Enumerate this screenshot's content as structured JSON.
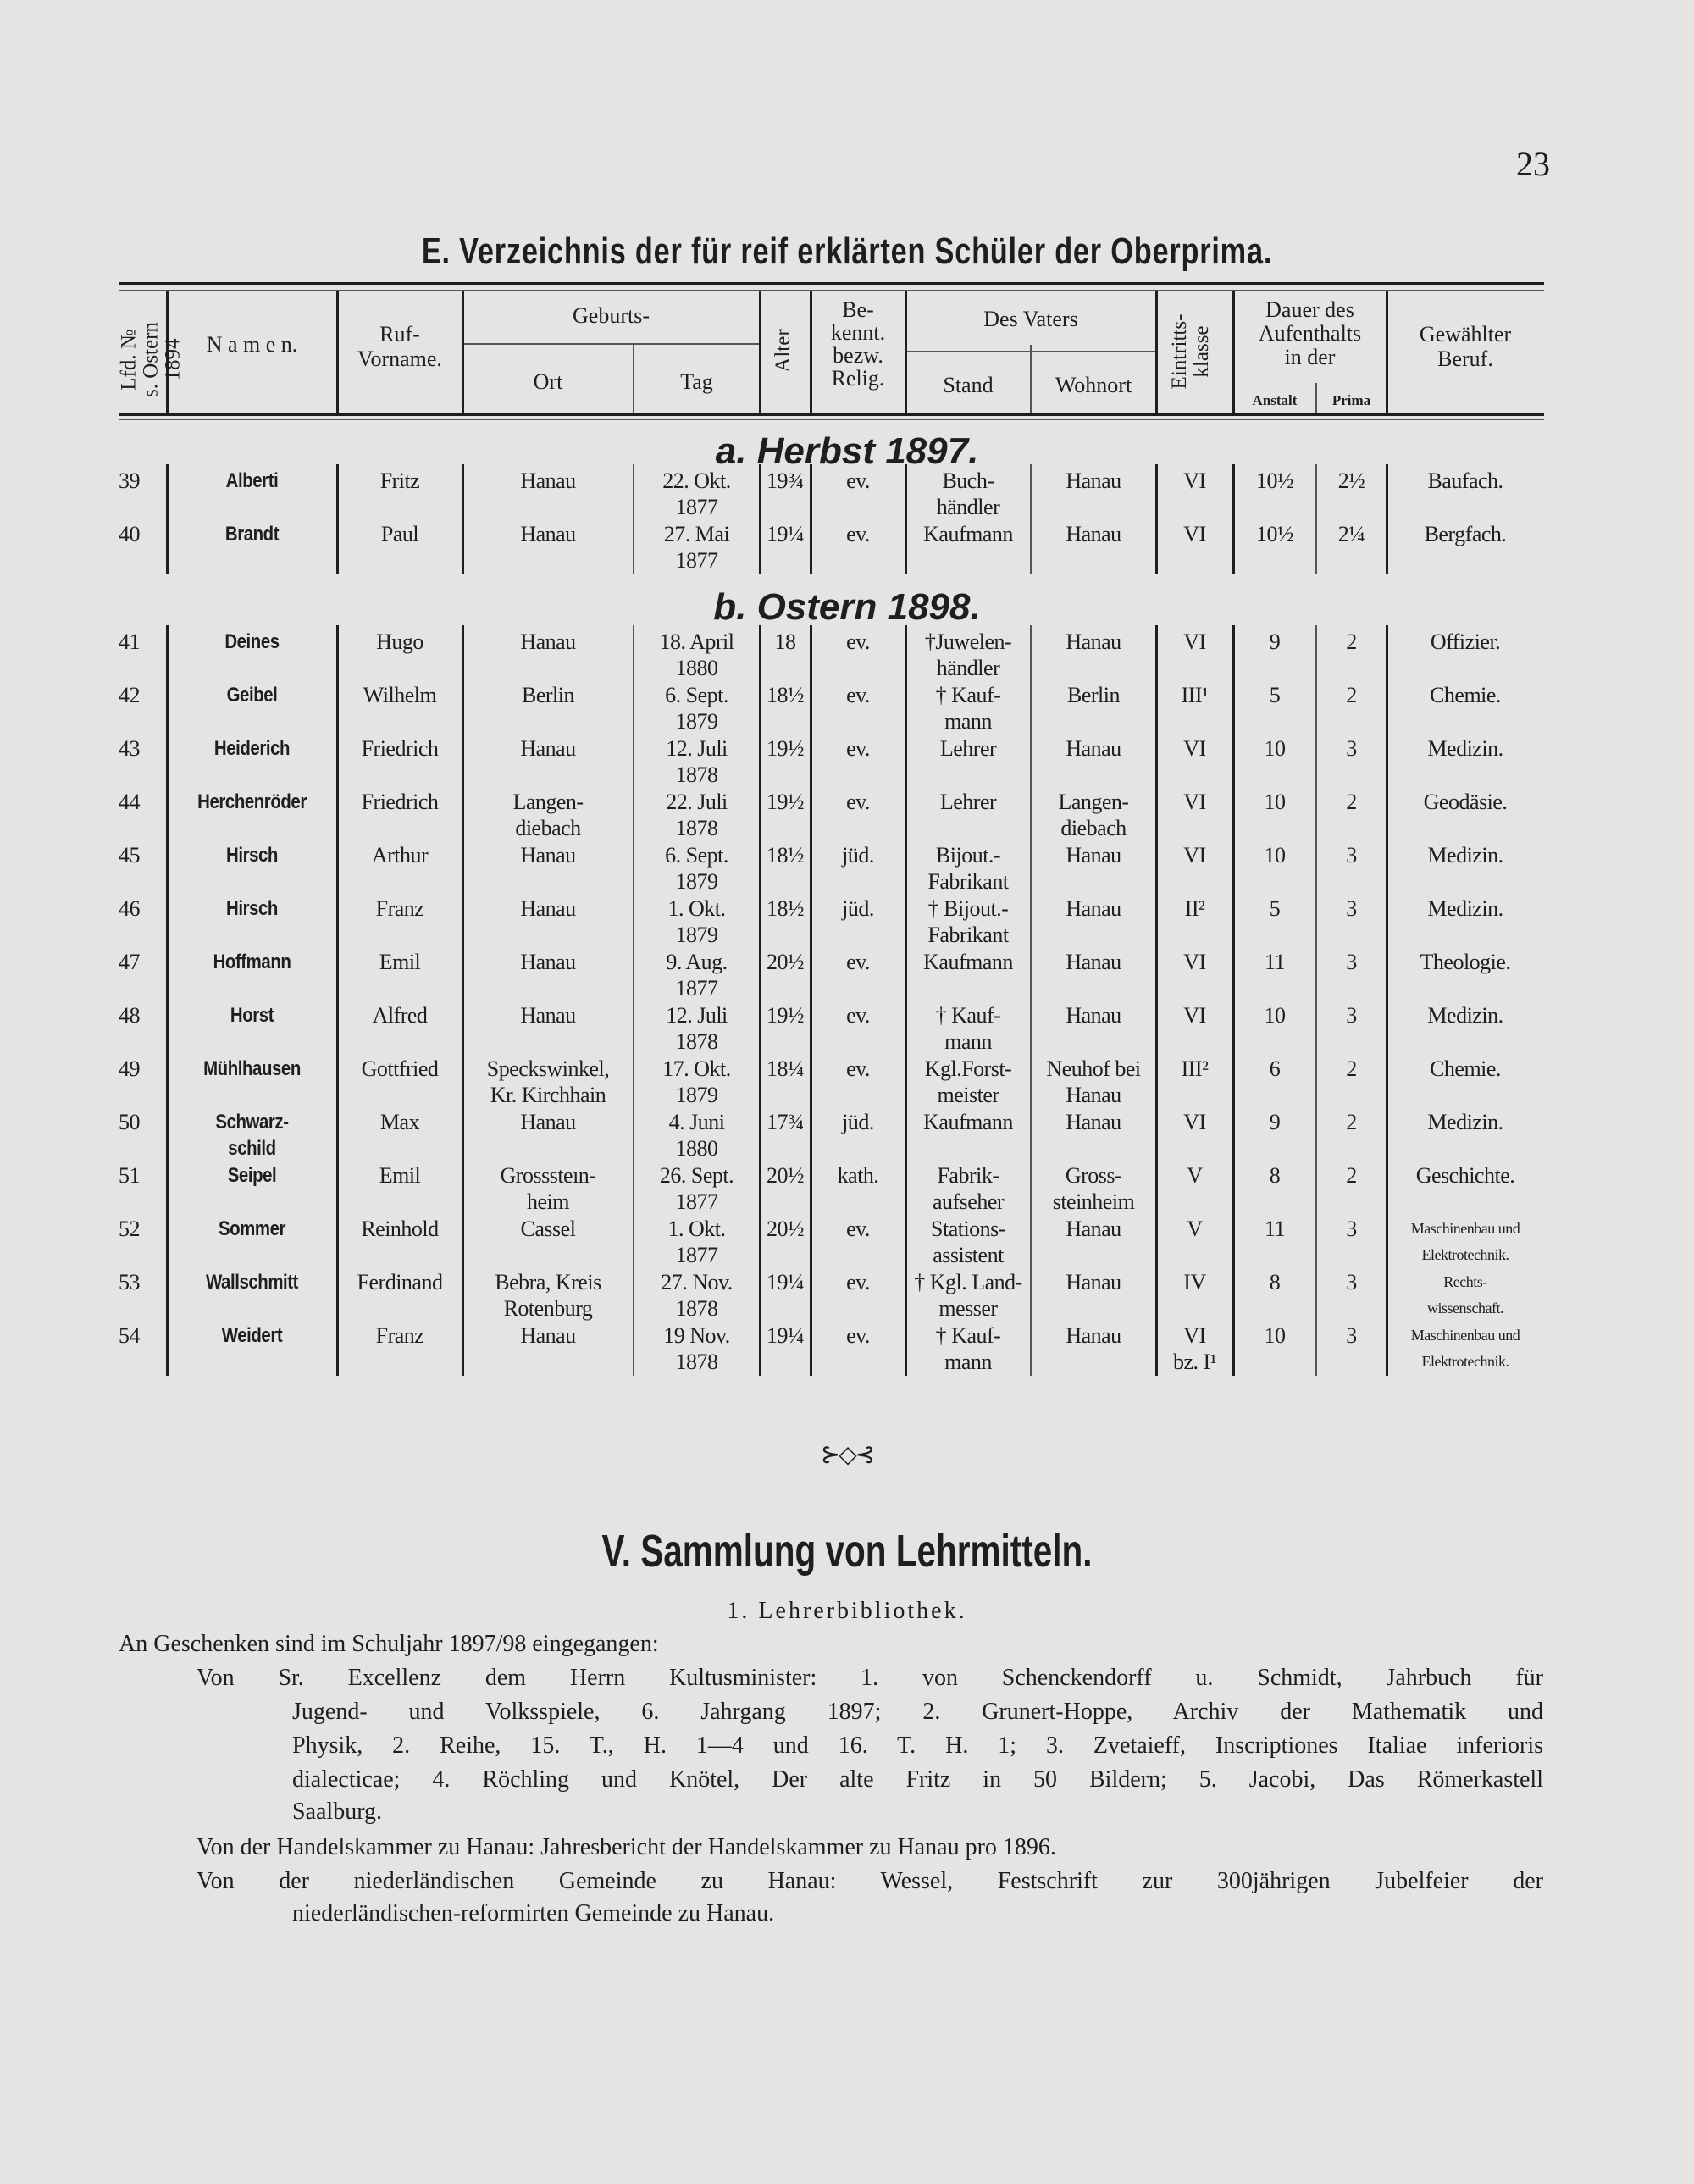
{
  "page_number": "23",
  "title": "E. Verzeichnis der für reif erklärten Schüler der Oberprima.",
  "headers": {
    "lfd": "Lfd. №\ns. Ostern 1894",
    "namen": "N a m e n.",
    "rufname": "Ruf-\nVorname.",
    "geburts": "Geburts-",
    "ort": "Ort",
    "tag": "Tag",
    "alter": "Alter",
    "relig": "Be-\nkennt.\nbezw.\nRelig.",
    "vater": "Des Vaters",
    "stand": "Stand",
    "wohnort": "Wohnort",
    "klasse": "Eintritts-\nklasse",
    "dauer": "Dauer des\nAufenthalts\nin der",
    "anstalt": "Anstalt",
    "prima": "Prima",
    "beruf": "Gewählter\nBeruf."
  },
  "sections": [
    {
      "label": "a. Herbst 1897.",
      "rows": [
        [
          "39",
          "Alberti",
          "Fritz",
          "Hanau",
          "22. Okt.\n1877",
          "19¾",
          "ev.",
          "Buch-\nhändler",
          "Hanau",
          "VI",
          "10½",
          "2½",
          "Baufach."
        ],
        [
          "40",
          "Brandt",
          "Paul",
          "Hanau",
          "27. Mai\n1877",
          "19¼",
          "ev.",
          "Kaufmann",
          "Hanau",
          "VI",
          "10½",
          "2¼",
          "Bergfach."
        ]
      ]
    },
    {
      "label": "b. Ostern 1898.",
      "rows": [
        [
          "41",
          "Deines",
          "Hugo",
          "Hanau",
          "18. April\n1880",
          "18",
          "ev.",
          "†Juwelen-\nhändler",
          "Hanau",
          "VI",
          "9",
          "2",
          "Offizier."
        ],
        [
          "42",
          "Geibel",
          "Wilhelm",
          "Berlin",
          "6. Sept.\n1879",
          "18½",
          "ev.",
          "† Kauf-\nmann",
          "Berlin",
          "III¹",
          "5",
          "2",
          "Chemie."
        ],
        [
          "43",
          "Heiderich",
          "Friedrich",
          "Hanau",
          "12. Juli\n1878",
          "19½",
          "ev.",
          "Lehrer",
          "Hanau",
          "VI",
          "10",
          "3",
          "Medizin."
        ],
        [
          "44",
          "Herchenröder",
          "Friedrich",
          "Langen-\ndiebach",
          "22. Juli\n1878",
          "19½",
          "ev.",
          "Lehrer",
          "Langen-\ndiebach",
          "VI",
          "10",
          "2",
          "Geodäsie."
        ],
        [
          "45",
          "Hirsch",
          "Arthur",
          "Hanau",
          "6. Sept.\n1879",
          "18½",
          "jüd.",
          "Bijout.-\nFabrikant",
          "Hanau",
          "VI",
          "10",
          "3",
          "Medizin."
        ],
        [
          "46",
          "Hirsch",
          "Franz",
          "Hanau",
          "1. Okt.\n1879",
          "18½",
          "jüd.",
          "† Bijout.-\nFabrikant",
          "Hanau",
          "II²",
          "5",
          "3",
          "Medizin."
        ],
        [
          "47",
          "Hoffmann",
          "Emil",
          "Hanau",
          "9. Aug.\n1877",
          "20½",
          "ev.",
          "Kaufmann",
          "Hanau",
          "VI",
          "11",
          "3",
          "Theologie."
        ],
        [
          "48",
          "Horst",
          "Alfred",
          "Hanau",
          "12. Juli\n1878",
          "19½",
          "ev.",
          "† Kauf-\nmann",
          "Hanau",
          "VI",
          "10",
          "3",
          "Medizin."
        ],
        [
          "49",
          "Mühlhausen",
          "Gottfried",
          "Speckswinkel,\nKr. Kirchhain",
          "17. Okt.\n1879",
          "18¼",
          "ev.",
          "Kgl.Forst-\nmeister",
          "Neuhof bei\nHanau",
          "III²",
          "6",
          "2",
          "Chemie."
        ],
        [
          "50",
          "Schwarz-\nschild",
          "Max",
          "Hanau",
          "4. Juni\n1880",
          "17¾",
          "jüd.",
          "Kaufmann",
          "Hanau",
          "VI",
          "9",
          "2",
          "Medizin."
        ],
        [
          "51",
          "Seipel",
          "Emil",
          "Grosssteın-\nheim",
          "26. Sept.\n1877",
          "20½",
          "kath.",
          "Fabrik-\naufseher",
          "Gross-\nsteinheim",
          "V",
          "8",
          "2",
          "Geschichte."
        ],
        [
          "52",
          "Sommer",
          "Reinhold",
          "Cassel",
          "1. Okt.\n1877",
          "20½",
          "ev.",
          "Stations-\nassistent",
          "Hanau",
          "V",
          "11",
          "3",
          "Maschinenbau und\nElektrotechnik."
        ],
        [
          "53",
          "Wallschmitt",
          "Ferdinand",
          "Bebra, Kreis\nRotenburg",
          "27. Nov.\n1878",
          "19¼",
          "ev.",
          "† Kgl. Land-\nmesser",
          "Hanau",
          "IV",
          "8",
          "3",
          "Rechts-\nwissenschaft."
        ],
        [
          "54",
          "Weidert",
          "Franz",
          "Hanau",
          "19 Nov.\n1878",
          "19¼",
          "ev.",
          "† Kauf-\nmann",
          "Hanau",
          "VI\nbz. I¹",
          "10",
          "3",
          "Maschinenbau und\nElektrotechnik."
        ]
      ]
    }
  ],
  "ornament": "⊱◇⊰",
  "section_title": "V. Sammlung von Lehrmitteln.",
  "subsection_title": "1. Lehrerbibliothek.",
  "paragraphs": [
    "An Geschenken sind im Schuljahr 1897/98 eingegangen:",
    "Von Sr. Excellenz dem Herrn Kultusminister: 1. von Schenckendorff u. Schmidt, Jahrbuch für",
    "Jugend- und Volksspiele, 6. Jahrgang 1897; 2. Grunert-Hoppe, Archiv der Mathematik und",
    "Physik, 2. Reihe, 15. T., H. 1—4 und 16. T. H. 1; 3. Zvetaieff, Inscriptiones Italiae inferioris",
    "dialecticae; 4. Röchling und Knötel, Der alte Fritz in 50 Bildern; 5. Jacobi, Das Römerkastell",
    "Saalburg.",
    "Von der Handelskammer zu Hanau: Jahresbericht der Handelskammer zu Hanau pro 1896.",
    "Von der niederländischen Gemeinde zu Hanau: Wessel, Festschrift zur 300jährigen Jubelfeier der",
    "niederländischen-reformirten Gemeinde zu Hanau."
  ]
}
